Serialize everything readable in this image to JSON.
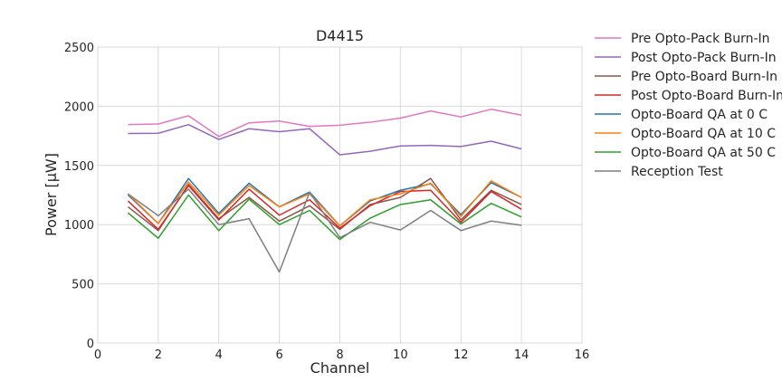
{
  "chart_data": {
    "type": "line",
    "title": "D4415",
    "xlabel": "Channel",
    "ylabel": "Power [μW]",
    "xlim": [
      0,
      16
    ],
    "ylim": [
      0,
      2500
    ],
    "xticks": [
      0,
      2,
      4,
      6,
      8,
      10,
      12,
      14,
      16
    ],
    "yticks": [
      0,
      500,
      1000,
      1500,
      2000,
      2500
    ],
    "grid": true,
    "legend_position": "outside-right",
    "x": [
      1,
      2,
      3,
      4,
      5,
      6,
      7,
      8,
      9,
      10,
      11,
      12,
      13,
      14
    ],
    "series": [
      {
        "name": "Pre Opto-Pack Burn-In",
        "color": "#e377c2",
        "values": [
          1845,
          1850,
          1920,
          1745,
          1860,
          1875,
          1830,
          1840,
          1865,
          1900,
          1960,
          1910,
          1975,
          1925
        ]
      },
      {
        "name": "Post Opto-Pack Burn-In",
        "color": "#9467bd",
        "values": [
          1770,
          1772,
          1845,
          1720,
          1810,
          1785,
          1810,
          1590,
          1620,
          1665,
          1670,
          1660,
          1705,
          1640
        ]
      },
      {
        "name": "Pre Opto-Board Burn-In",
        "color": "#8c564b",
        "values": [
          1150,
          950,
          1340,
          1050,
          1230,
          1030,
          1160,
          960,
          1170,
          1230,
          1390,
          1040,
          1290,
          1170
        ]
      },
      {
        "name": "Post Opto-Board Burn-In",
        "color": "#d62728",
        "values": [
          1200,
          960,
          1330,
          1040,
          1300,
          1080,
          1210,
          970,
          1160,
          1280,
          1290,
          1020,
          1280,
          1130
        ]
      },
      {
        "name": "Opto-Board QA at 0 C",
        "color": "#1f77b4",
        "values": [
          1250,
          1010,
          1390,
          1095,
          1350,
          1150,
          1275,
          990,
          1200,
          1290,
          1345,
          1085,
          1355,
          1230
        ]
      },
      {
        "name": "Opto-Board QA at 10 C",
        "color": "#ff7f0e",
        "values": [
          1260,
          1010,
          1360,
          1080,
          1330,
          1150,
          1260,
          990,
          1210,
          1260,
          1350,
          1070,
          1370,
          1230
        ]
      },
      {
        "name": "Opto-Board QA at 50 C",
        "color": "#2ca02c",
        "values": [
          1100,
          885,
          1250,
          950,
          1215,
          1000,
          1120,
          875,
          1055,
          1170,
          1210,
          1005,
          1180,
          1065
        ]
      },
      {
        "name": "Reception Test",
        "color": "#7f7f7f",
        "values": [
          1260,
          1075,
          1300,
          1000,
          1050,
          600,
          1275,
          890,
          1020,
          955,
          1120,
          950,
          1030,
          995
        ]
      }
    ]
  }
}
